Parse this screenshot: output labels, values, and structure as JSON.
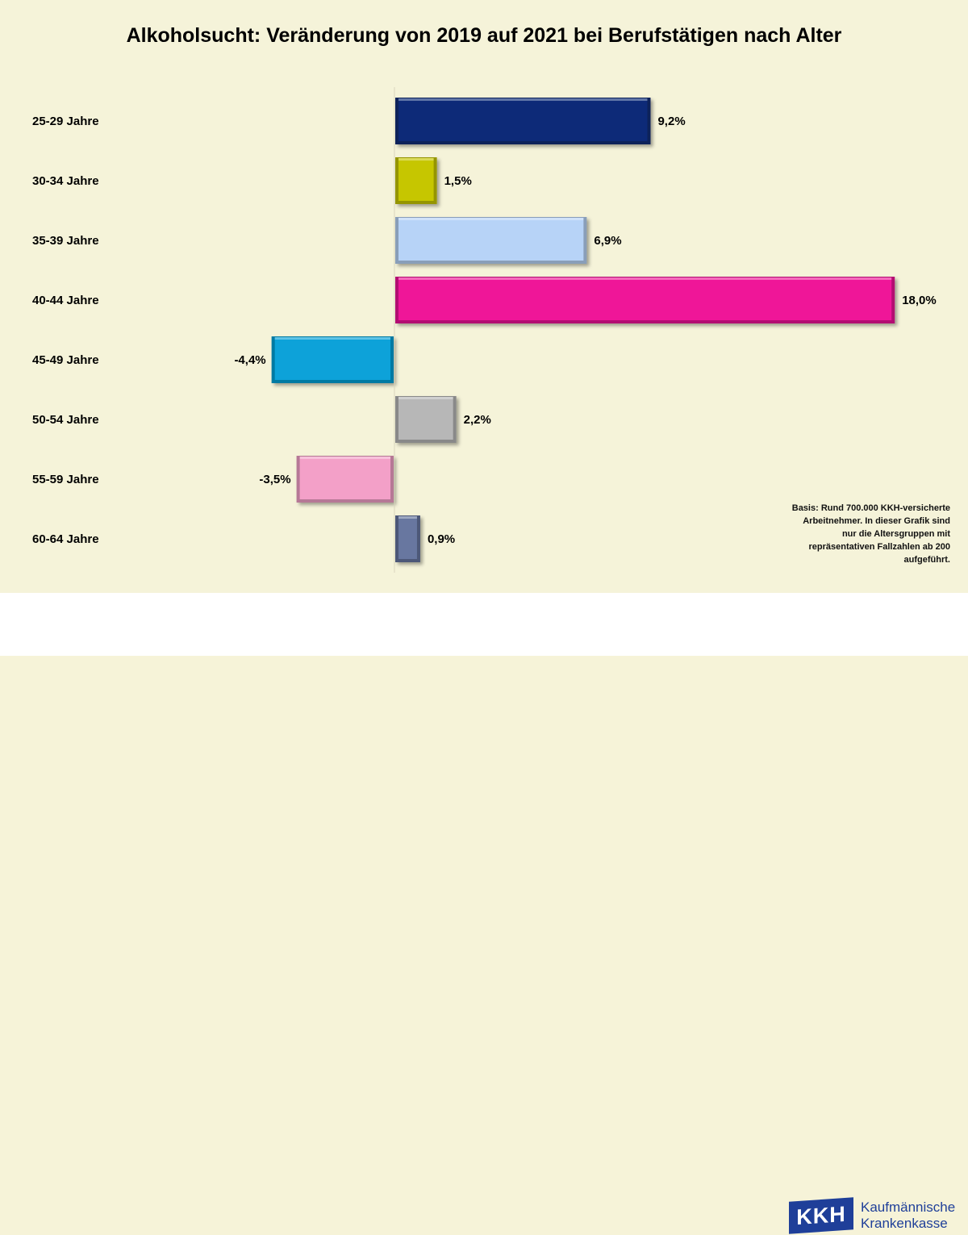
{
  "chart_data": {
    "type": "bar",
    "orientation": "horizontal",
    "title": "Alkoholsucht: Veränderung von 2019 auf 2021 bei Berufstätigen nach Alter",
    "categories": [
      "25-29 Jahre",
      "30-34 Jahre",
      "35-39 Jahre",
      "40-44 Jahre",
      "45-49 Jahre",
      "50-54 Jahre",
      "55-59 Jahre",
      "60-64 Jahre"
    ],
    "values": [
      9.2,
      1.5,
      6.9,
      18.0,
      -4.4,
      2.2,
      -3.5,
      0.9
    ],
    "value_labels": [
      "9,2%",
      "1,5%",
      "6,9%",
      "18,0%",
      "-4,4%",
      "2,2%",
      "-3,5%",
      "0,9%"
    ],
    "colors": [
      "#0b2a78",
      "#c6c600",
      "#b7d3f7",
      "#ef1598",
      "#07a2d9",
      "#b7b7b7",
      "#f3a0c8",
      "#6777a0"
    ],
    "xlim": [
      -4.4,
      18.0
    ],
    "xlabel": "",
    "ylabel": "",
    "grid": false,
    "legend": "none"
  },
  "note": "Basis: Rund 700.000 KKH-versicherte Arbeitnehmer. In dieser Grafik sind nur die Altersgruppen mit repräsentativen Fallzahlen ab 200 aufgeführt.",
  "logo": {
    "mark": "KKH",
    "line1": "Kaufmännische",
    "line2": "Krankenkasse"
  }
}
